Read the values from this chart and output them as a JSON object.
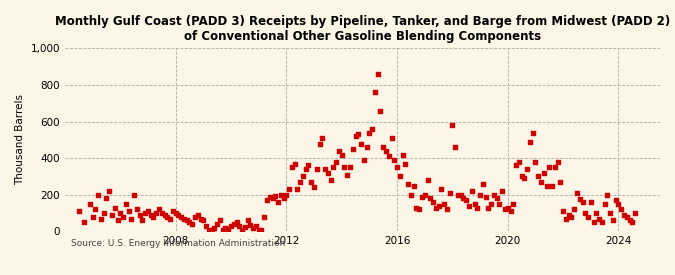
{
  "title": "Monthly Gulf Coast (PADD 3) Receipts by Pipeline, Tanker, and Barge from Midwest (PADD 2)\nof Conventional Other Gasoline Blending Components",
  "ylabel": "Thousand Barrels",
  "source": "Source: U.S. Energy Information Administration",
  "background_color": "#fdf5e6",
  "plot_background_color": "#fdf5e6",
  "dot_color": "#cc0000",
  "ylim": [
    0,
    1000
  ],
  "yticks": [
    0,
    200,
    400,
    600,
    800,
    1000
  ],
  "ytick_labels": [
    "0",
    "200",
    "400",
    "600",
    "800",
    "1,000"
  ],
  "xtick_years": [
    2008,
    2012,
    2016,
    2020,
    2024
  ],
  "data_x": [
    2004.5,
    2004.7,
    2004.9,
    2005.0,
    2005.1,
    2005.2,
    2005.3,
    2005.4,
    2005.5,
    2005.6,
    2005.7,
    2005.8,
    2005.9,
    2006.0,
    2006.1,
    2006.2,
    2006.3,
    2006.4,
    2006.5,
    2006.6,
    2006.7,
    2006.8,
    2006.9,
    2007.0,
    2007.1,
    2007.2,
    2007.3,
    2007.4,
    2007.5,
    2007.6,
    2007.7,
    2007.8,
    2007.9,
    2008.0,
    2008.1,
    2008.2,
    2008.3,
    2008.4,
    2008.5,
    2008.6,
    2008.7,
    2008.8,
    2008.9,
    2009.0,
    2009.1,
    2009.2,
    2009.3,
    2009.4,
    2009.5,
    2009.6,
    2009.7,
    2009.8,
    2009.9,
    2010.0,
    2010.1,
    2010.2,
    2010.3,
    2010.4,
    2010.5,
    2010.6,
    2010.7,
    2010.8,
    2010.9,
    2011.0,
    2011.1,
    2011.2,
    2011.3,
    2011.4,
    2011.5,
    2011.6,
    2011.7,
    2011.8,
    2011.9,
    2012.0,
    2012.1,
    2012.2,
    2012.3,
    2012.4,
    2012.5,
    2012.6,
    2012.7,
    2012.8,
    2012.9,
    2013.0,
    2013.1,
    2013.2,
    2013.3,
    2013.4,
    2013.5,
    2013.6,
    2013.7,
    2013.8,
    2013.9,
    2014.0,
    2014.1,
    2014.2,
    2014.3,
    2014.4,
    2014.5,
    2014.6,
    2014.7,
    2014.8,
    2014.9,
    2015.0,
    2015.1,
    2015.2,
    2015.3,
    2015.4,
    2015.5,
    2015.6,
    2015.7,
    2015.8,
    2015.9,
    2016.0,
    2016.1,
    2016.2,
    2016.3,
    2016.4,
    2016.5,
    2016.6,
    2016.7,
    2016.8,
    2016.9,
    2017.0,
    2017.1,
    2017.2,
    2017.3,
    2017.4,
    2017.5,
    2017.6,
    2017.7,
    2017.8,
    2017.9,
    2018.0,
    2018.1,
    2018.2,
    2018.3,
    2018.4,
    2018.5,
    2018.6,
    2018.7,
    2018.8,
    2018.9,
    2019.0,
    2019.1,
    2019.2,
    2019.3,
    2019.4,
    2019.5,
    2019.6,
    2019.7,
    2019.8,
    2019.9,
    2020.0,
    2020.1,
    2020.2,
    2020.3,
    2020.4,
    2020.5,
    2020.6,
    2020.7,
    2020.8,
    2020.9,
    2021.0,
    2021.1,
    2021.2,
    2021.3,
    2021.4,
    2021.5,
    2021.6,
    2021.7,
    2021.8,
    2021.9,
    2022.0,
    2022.1,
    2022.2,
    2022.3,
    2022.4,
    2022.5,
    2022.6,
    2022.7,
    2022.8,
    2022.9,
    2023.0,
    2023.1,
    2023.2,
    2023.3,
    2023.4,
    2023.5,
    2023.6,
    2023.7,
    2023.8,
    2023.9,
    2024.0,
    2024.1,
    2024.2,
    2024.3,
    2024.4,
    2024.5,
    2024.6
  ],
  "data_y": [
    110,
    50,
    150,
    80,
    120,
    200,
    70,
    100,
    180,
    220,
    90,
    130,
    60,
    100,
    80,
    150,
    110,
    70,
    200,
    120,
    90,
    60,
    100,
    110,
    90,
    80,
    100,
    120,
    100,
    90,
    80,
    70,
    110,
    100,
    90,
    80,
    70,
    60,
    50,
    40,
    80,
    90,
    70,
    60,
    30,
    10,
    5,
    20,
    40,
    60,
    5,
    20,
    15,
    30,
    40,
    50,
    30,
    10,
    25,
    60,
    35,
    20,
    30,
    5,
    10,
    80,
    170,
    190,
    185,
    195,
    160,
    200,
    180,
    200,
    230,
    350,
    370,
    230,
    270,
    300,
    340,
    360,
    270,
    240,
    340,
    480,
    510,
    340,
    320,
    280,
    350,
    380,
    440,
    420,
    350,
    310,
    350,
    450,
    520,
    530,
    480,
    390,
    460,
    540,
    560,
    760,
    860,
    660,
    460,
    440,
    410,
    510,
    390,
    350,
    300,
    420,
    370,
    260,
    200,
    250,
    130,
    120,
    190,
    200,
    280,
    180,
    160,
    130,
    140,
    230,
    150,
    120,
    210,
    580,
    460,
    200,
    200,
    180,
    170,
    140,
    220,
    150,
    130,
    200,
    260,
    190,
    130,
    150,
    200,
    180,
    150,
    220,
    120,
    130,
    110,
    150,
    360,
    380,
    300,
    290,
    340,
    490,
    540,
    380,
    300,
    270,
    320,
    250,
    350,
    250,
    350,
    380,
    270,
    110,
    70,
    90,
    80,
    120,
    210,
    175,
    160,
    100,
    80,
    160,
    50,
    100,
    70,
    50,
    150,
    200,
    100,
    60,
    170,
    150,
    120,
    90,
    80,
    60,
    50,
    100
  ]
}
